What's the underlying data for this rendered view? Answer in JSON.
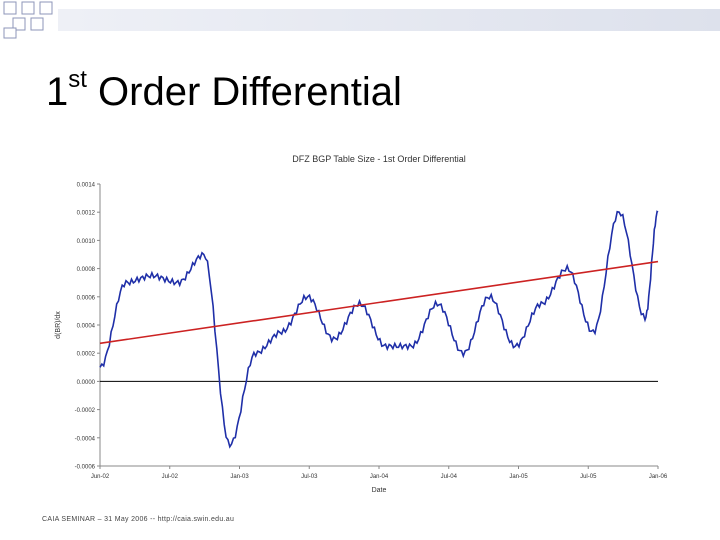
{
  "slide": {
    "title_prefix": "1",
    "title_sup": "st",
    "title_rest": "Order Differential",
    "footer": "CAIA SEMINAR – 31 May 2006 -- http://caia.swin.edu.au"
  },
  "colors": {
    "series": "#1f2fa8",
    "trend": "#cc2222",
    "zero_line": "#000000"
  },
  "chart_data": {
    "type": "line",
    "title": "DFZ BGP Table Size - 1st Order Differential",
    "xlabel": "Date",
    "ylabel": "d(BR)/dx",
    "ylim": [
      -0.0006,
      0.0014
    ],
    "yticks": [
      "0.0014",
      "0.0012",
      "0.0010",
      "0.0008",
      "0.0006",
      "0.0004",
      "0.0002",
      "0.0000",
      "-0.0002",
      "-0.0004",
      "-0.0006"
    ],
    "xticks": [
      "Jun-02",
      "Jul-02",
      "Jan-03",
      "Jul-03",
      "Jan-04",
      "Jul-04",
      "Jan-05",
      "Jul-05",
      "Jan-06"
    ],
    "x": [
      0,
      0.4,
      0.8,
      1.2,
      1.6,
      2,
      2.4,
      2.8,
      3.2,
      3.6,
      4,
      4.4,
      4.8,
      5.2,
      5.6,
      6,
      6.4,
      6.8,
      7.2,
      7.6,
      8,
      8.4,
      8.6
    ],
    "series": [
      {
        "values": [
          0.0001,
          0.0007,
          0.00075,
          0.0007,
          0.0009,
          -0.00045,
          0.0002,
          0.00035,
          0.0006,
          0.0003,
          0.00055,
          0.00025,
          0.00025,
          0.00055,
          0.0002,
          0.0006,
          0.00025,
          0.00055,
          0.0008,
          0.00035,
          0.0012,
          0.00045,
          0.0012
        ],
        "trend": {
          "start": 0.00027,
          "end": 0.00085
        }
      }
    ],
    "grid": false
  }
}
